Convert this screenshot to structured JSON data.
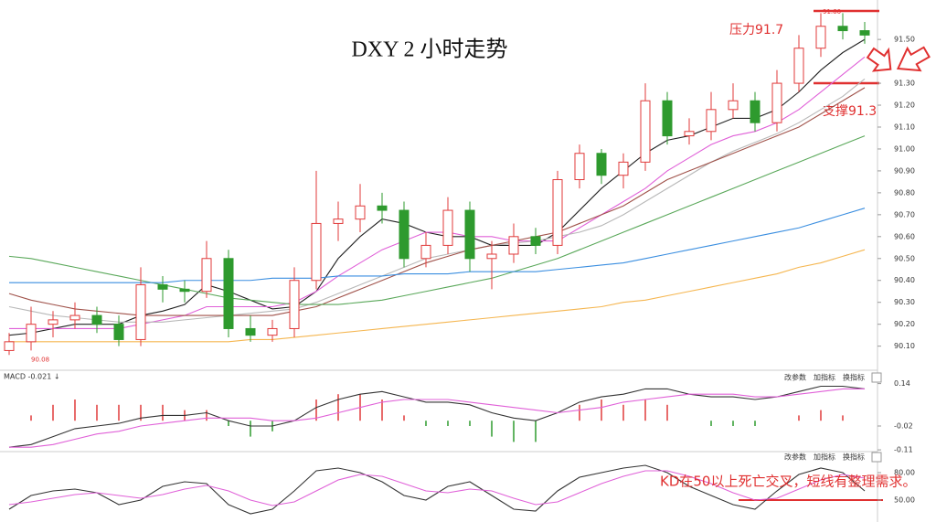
{
  "chart_data": [
    {
      "type": "candlestick",
      "title": "DXY 2 小时走势",
      "annotations": [
        "压力91.7",
        "支撑91.3"
      ],
      "price_marks": [
        {
          "value": 91.6,
          "label": "91.60"
        },
        {
          "value": 90.08,
          "label": "90.08"
        }
      ],
      "up_color": "#e03a3a",
      "down_color": "#2e9a2e",
      "open": [
        90.08,
        90.12,
        90.2,
        90.22,
        90.24,
        90.2,
        90.13,
        90.38,
        90.36,
        90.35,
        90.5,
        90.18,
        90.15,
        90.18,
        90.4,
        90.66,
        90.68,
        90.74,
        90.72,
        90.5,
        90.56,
        90.72,
        90.5,
        90.52,
        90.6,
        90.56,
        90.86,
        90.98,
        90.88,
        90.94,
        91.22,
        91.06,
        91.08,
        91.18,
        91.22,
        91.12,
        91.3,
        91.46,
        91.56,
        91.54
      ],
      "high": [
        90.16,
        90.28,
        90.26,
        90.3,
        90.28,
        90.24,
        90.46,
        90.42,
        90.4,
        90.58,
        90.54,
        90.24,
        90.22,
        90.46,
        90.9,
        90.76,
        90.84,
        90.8,
        90.76,
        90.62,
        90.78,
        90.76,
        90.58,
        90.66,
        90.64,
        90.9,
        91.02,
        91.0,
        90.98,
        91.3,
        91.26,
        91.14,
        91.26,
        91.3,
        91.26,
        91.36,
        91.52,
        91.62,
        91.62,
        91.58
      ],
      "low": [
        90.06,
        90.08,
        90.14,
        90.18,
        90.16,
        90.1,
        90.1,
        90.3,
        90.3,
        90.32,
        90.14,
        90.12,
        90.12,
        90.14,
        90.36,
        90.58,
        90.62,
        90.66,
        90.46,
        90.46,
        90.52,
        90.44,
        90.36,
        90.48,
        90.52,
        90.52,
        90.82,
        90.84,
        90.82,
        90.9,
        91.02,
        91.02,
        91.04,
        91.14,
        91.08,
        91.08,
        91.26,
        91.42,
        91.5,
        91.48
      ],
      "close": [
        90.12,
        90.2,
        90.22,
        90.24,
        90.2,
        90.13,
        90.38,
        90.36,
        90.35,
        90.5,
        90.18,
        90.15,
        90.18,
        90.4,
        90.66,
        90.68,
        90.74,
        90.72,
        90.5,
        90.56,
        90.72,
        90.5,
        90.52,
        90.6,
        90.56,
        90.86,
        90.98,
        90.88,
        90.94,
        91.22,
        91.06,
        91.08,
        91.18,
        91.22,
        91.12,
        91.3,
        91.46,
        91.56,
        91.54,
        91.52
      ],
      "series": [
        {
          "color": "#222222",
          "values": [
            90.15,
            90.16,
            90.18,
            90.2,
            90.2,
            90.2,
            90.24,
            90.26,
            90.29,
            90.38,
            90.35,
            90.31,
            90.27,
            90.28,
            90.35,
            90.5,
            90.6,
            90.68,
            90.66,
            90.62,
            90.6,
            90.6,
            90.56,
            90.56,
            90.56,
            90.62,
            90.72,
            90.82,
            90.9,
            90.98,
            91.04,
            91.06,
            91.1,
            91.14,
            91.14,
            91.18,
            91.26,
            91.36,
            91.44,
            91.5
          ]
        },
        {
          "color": "#e060d8",
          "values": [
            90.18,
            90.18,
            90.18,
            90.18,
            90.18,
            90.18,
            90.2,
            90.22,
            90.24,
            90.28,
            90.28,
            90.28,
            90.28,
            90.3,
            90.35,
            90.42,
            90.48,
            90.54,
            90.58,
            90.62,
            90.62,
            90.6,
            90.6,
            90.58,
            90.58,
            90.58,
            90.64,
            90.7,
            90.76,
            90.82,
            90.9,
            90.96,
            91.02,
            91.06,
            91.08,
            91.12,
            91.18,
            91.26,
            91.34,
            91.42
          ]
        },
        {
          "color": "#b8b8b8",
          "values": [
            90.28,
            90.26,
            90.24,
            90.23,
            90.22,
            90.21,
            90.21,
            90.21,
            90.22,
            90.23,
            90.24,
            90.25,
            90.26,
            90.27,
            90.3,
            90.34,
            90.38,
            90.42,
            90.46,
            90.5,
            90.52,
            90.54,
            90.56,
            90.57,
            90.58,
            90.6,
            90.62,
            90.65,
            90.7,
            90.76,
            90.82,
            90.88,
            90.94,
            90.99,
            91.03,
            91.07,
            91.12,
            91.18,
            91.24,
            91.32
          ]
        },
        {
          "color": "#a0524a",
          "values": [
            90.34,
            90.31,
            90.29,
            90.27,
            90.26,
            90.25,
            90.24,
            90.24,
            90.24,
            90.24,
            90.24,
            90.24,
            90.24,
            90.26,
            90.28,
            90.32,
            90.36,
            90.4,
            90.44,
            90.48,
            90.51,
            90.54,
            90.56,
            90.58,
            90.6,
            90.62,
            90.66,
            90.7,
            90.74,
            90.8,
            90.86,
            90.9,
            90.94,
            90.98,
            91.02,
            91.06,
            91.1,
            91.16,
            91.22,
            91.28
          ]
        },
        {
          "color": "#5aa85a",
          "values": [
            90.51,
            90.5,
            90.48,
            90.46,
            90.44,
            90.42,
            90.4,
            90.38,
            90.36,
            90.34,
            90.32,
            90.31,
            90.3,
            90.29,
            90.29,
            90.29,
            90.3,
            90.31,
            90.33,
            90.35,
            90.37,
            90.39,
            90.41,
            90.44,
            90.47,
            90.5,
            90.54,
            90.58,
            90.62,
            90.66,
            90.7,
            90.74,
            90.78,
            90.82,
            90.86,
            90.9,
            90.94,
            90.98,
            91.02,
            91.06
          ]
        },
        {
          "color": "#3a8ee0",
          "values": [
            90.39,
            90.39,
            90.39,
            90.39,
            90.39,
            90.39,
            90.39,
            90.39,
            90.4,
            90.4,
            90.4,
            90.4,
            90.41,
            90.41,
            90.41,
            90.42,
            90.42,
            90.42,
            90.43,
            90.43,
            90.43,
            90.44,
            90.44,
            90.44,
            90.44,
            90.45,
            90.46,
            90.47,
            90.48,
            90.5,
            90.52,
            90.54,
            90.56,
            90.58,
            90.6,
            90.62,
            90.64,
            90.67,
            90.7,
            90.73
          ]
        },
        {
          "color": "#f5b650",
          "values": [
            90.12,
            90.12,
            90.12,
            90.12,
            90.12,
            90.12,
            90.12,
            90.12,
            90.12,
            90.12,
            90.12,
            90.13,
            90.13,
            90.14,
            90.15,
            90.16,
            90.17,
            90.18,
            90.19,
            90.2,
            90.21,
            90.22,
            90.23,
            90.24,
            90.25,
            90.26,
            90.27,
            90.28,
            90.3,
            90.31,
            90.33,
            90.35,
            90.37,
            90.39,
            90.41,
            90.43,
            90.46,
            90.48,
            90.51,
            90.54
          ]
        }
      ],
      "ylim": [
        89.99,
        91.68
      ],
      "yticks": [
        {
          "value": 91.5,
          "label": "91.50"
        },
        {
          "value": 91.3,
          "label": "91.30"
        },
        {
          "value": 91.2,
          "label": "91.20"
        },
        {
          "value": 91.1,
          "label": "91.10"
        },
        {
          "value": 91.0,
          "label": "91.00"
        },
        {
          "value": 90.9,
          "label": "90.90"
        },
        {
          "value": 90.8,
          "label": "90.80"
        },
        {
          "value": 90.7,
          "label": "90.70"
        },
        {
          "value": 90.6,
          "label": "90.60"
        },
        {
          "value": 90.5,
          "label": "90.50"
        },
        {
          "value": 90.4,
          "label": "90.40"
        },
        {
          "value": 90.3,
          "label": "90.30"
        },
        {
          "value": 90.2,
          "label": "90.20"
        },
        {
          "value": 90.1,
          "label": "90.10"
        }
      ]
    },
    {
      "type": "macd",
      "label": "MACD -0.021 ↓",
      "buttons": [
        "改参数",
        "加指标",
        "换指标"
      ],
      "up_color": "#e03a3a",
      "down_color": "#2e9a2e",
      "histogram": [
        0.0,
        0.02,
        0.06,
        0.08,
        0.06,
        0.06,
        0.06,
        0.06,
        0.04,
        0.04,
        -0.02,
        -0.06,
        -0.04,
        0.0,
        0.08,
        0.1,
        0.1,
        0.08,
        0.02,
        -0.02,
        -0.02,
        -0.02,
        -0.06,
        -0.08,
        -0.08,
        0.0,
        0.06,
        0.08,
        0.06,
        0.08,
        0.06,
        0.0,
        -0.02,
        -0.02,
        -0.02,
        0.0,
        0.02,
        0.04,
        0.02,
        0.0
      ],
      "series": [
        {
          "color": "#333333",
          "values": [
            -0.1,
            -0.09,
            -0.06,
            -0.03,
            -0.02,
            -0.01,
            0.01,
            0.02,
            0.02,
            0.03,
            0.0,
            -0.02,
            -0.02,
            0.0,
            0.05,
            0.08,
            0.1,
            0.11,
            0.09,
            0.07,
            0.07,
            0.06,
            0.03,
            0.01,
            0.0,
            0.03,
            0.07,
            0.09,
            0.1,
            0.12,
            0.12,
            0.1,
            0.09,
            0.09,
            0.08,
            0.09,
            0.11,
            0.13,
            0.13,
            0.12
          ]
        },
        {
          "color": "#e060d8",
          "values": [
            -0.1,
            -0.1,
            -0.09,
            -0.07,
            -0.05,
            -0.04,
            -0.02,
            -0.01,
            0.0,
            0.01,
            0.01,
            0.01,
            0.0,
            0.0,
            0.01,
            0.03,
            0.05,
            0.07,
            0.08,
            0.08,
            0.08,
            0.07,
            0.06,
            0.05,
            0.04,
            0.03,
            0.04,
            0.05,
            0.07,
            0.08,
            0.09,
            0.1,
            0.1,
            0.1,
            0.09,
            0.09,
            0.1,
            0.11,
            0.12,
            0.12
          ]
        }
      ],
      "ylim": [
        -0.12,
        0.18
      ],
      "yticks": [
        0.14,
        -0.02,
        -0.11
      ]
    },
    {
      "type": "kd",
      "buttons": [
        "改参数",
        "加指标",
        "换指标"
      ],
      "annotation": "KD在50以上死亡交叉，短线有整理需求。",
      "series": [
        {
          "color": "#333333",
          "values": [
            40,
            55,
            60,
            62,
            58,
            45,
            50,
            65,
            70,
            68,
            45,
            35,
            40,
            60,
            82,
            85,
            80,
            70,
            55,
            50,
            65,
            70,
            55,
            40,
            38,
            60,
            75,
            80,
            85,
            88,
            80,
            65,
            55,
            45,
            40,
            60,
            78,
            85,
            80,
            60
          ]
        },
        {
          "color": "#e060d8",
          "values": [
            45,
            48,
            52,
            56,
            58,
            55,
            52,
            56,
            62,
            66,
            60,
            50,
            44,
            48,
            60,
            72,
            78,
            76,
            68,
            60,
            58,
            62,
            60,
            52,
            45,
            48,
            58,
            68,
            76,
            82,
            82,
            76,
            68,
            58,
            50,
            52,
            62,
            72,
            78,
            74
          ]
        }
      ],
      "ylim": [
        30,
        100
      ],
      "yticks": [
        {
          "value": 80,
          "label": "80.00"
        },
        {
          "value": 50,
          "label": "50.00"
        }
      ]
    }
  ]
}
